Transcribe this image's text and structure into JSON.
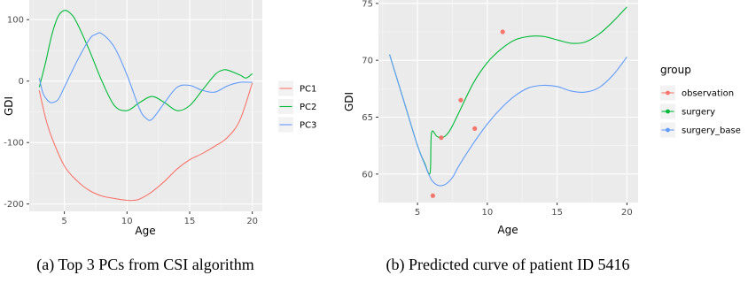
{
  "chart_data": [
    {
      "type": "line",
      "caption": "(a) Top 3 PCs from CSI algorithm",
      "xlabel": "Age",
      "ylabel": "GDI",
      "xlim": [
        2.2,
        20.8
      ],
      "ylim": [
        -212,
        132
      ],
      "xticks": [
        5,
        10,
        15,
        20
      ],
      "yticks": [
        -200,
        -100,
        0,
        100
      ],
      "tick_labels_x": [
        "5",
        "10",
        "15",
        "20"
      ],
      "tick_labels_y": [
        "-200",
        "-100",
        "0",
        "100"
      ],
      "grid": true,
      "legend": {
        "placement": "right",
        "title": ""
      },
      "series": [
        {
          "name": "PC1",
          "color": "#F8766D",
          "x": [
            3,
            3.5,
            4,
            5,
            6,
            7,
            8,
            9,
            10,
            10.5,
            11,
            12,
            13,
            14,
            15,
            16,
            17,
            18,
            19,
            20
          ],
          "y": [
            -15,
            -60,
            -92,
            -138,
            -162,
            -178,
            -187,
            -191,
            -194,
            -194,
            -192,
            -180,
            -163,
            -143,
            -128,
            -118,
            -106,
            -92,
            -64,
            -3
          ]
        },
        {
          "name": "PC2",
          "color": "#00BA38",
          "x": [
            3,
            3.5,
            4,
            4.5,
            5,
            5.5,
            6,
            7,
            8,
            9,
            10,
            11,
            12,
            13,
            14,
            15,
            16,
            17,
            17.5,
            18,
            19,
            19.5,
            20
          ],
          "y": [
            -10,
            30,
            75,
            105,
            115,
            110,
            95,
            50,
            0,
            -40,
            -48,
            -35,
            -25,
            -35,
            -48,
            -40,
            -15,
            10,
            17,
            18,
            10,
            5,
            12
          ]
        },
        {
          "name": "PC3",
          "color": "#619CFF",
          "x": [
            3,
            3.3,
            3.7,
            4,
            4.5,
            5,
            6,
            7,
            7.5,
            8,
            9,
            10,
            11,
            11.5,
            12,
            13,
            14,
            15,
            16,
            17,
            18,
            19,
            20
          ],
          "y": [
            5,
            -20,
            -32,
            -35,
            -30,
            -10,
            32,
            68,
            76,
            77,
            55,
            10,
            -45,
            -60,
            -62,
            -35,
            -10,
            -7,
            -15,
            -18,
            -8,
            -2,
            -2
          ]
        }
      ]
    },
    {
      "type": "line",
      "caption": "(b) Predicted curve of patient ID 5416",
      "xlabel": "Age",
      "ylabel": "GDI",
      "xlim": [
        2.2,
        20.8
      ],
      "ylim": [
        57.5,
        75.3
      ],
      "xticks": [
        5,
        10,
        15,
        20
      ],
      "yticks": [
        60,
        65,
        70,
        75
      ],
      "tick_labels_x": [
        "5",
        "10",
        "15",
        "20"
      ],
      "tick_labels_y": [
        "60",
        "65",
        "70",
        "75"
      ],
      "grid": true,
      "legend": {
        "placement": "right",
        "title": "group"
      },
      "series": [
        {
          "name": "surgery",
          "color": "#00BA38",
          "x": [
            3,
            4,
            5,
            5.5,
            5.9,
            6.0,
            6.4,
            6.8,
            7.3,
            8,
            9,
            10,
            11,
            12,
            13,
            14,
            15,
            16,
            17,
            18,
            19,
            20
          ],
          "y": [
            70.5,
            66.5,
            62.5,
            61.0,
            60.1,
            63.6,
            63.3,
            63.2,
            63.8,
            65.5,
            68.0,
            69.8,
            71.0,
            71.8,
            72.1,
            72.1,
            71.8,
            71.5,
            71.6,
            72.3,
            73.4,
            74.7
          ]
        },
        {
          "name": "surgery_base",
          "color": "#619CFF",
          "x": [
            3,
            4,
            5,
            5.5,
            6,
            6.5,
            7,
            7.5,
            8,
            9,
            10,
            11,
            12,
            13,
            14,
            15,
            16,
            17,
            18,
            19,
            20
          ],
          "y": [
            70.5,
            66.5,
            62.5,
            60.9,
            59.5,
            59.0,
            59.1,
            59.7,
            60.8,
            62.7,
            64.4,
            65.8,
            66.9,
            67.6,
            67.8,
            67.7,
            67.3,
            67.2,
            67.6,
            68.7,
            70.3
          ]
        },
        {
          "name": "observation",
          "color": "#F8766D",
          "points": [
            {
              "x": 6.1,
              "y": 58.1
            },
            {
              "x": 6.7,
              "y": 63.2
            },
            {
              "x": 8.1,
              "y": 66.5
            },
            {
              "x": 9.1,
              "y": 64.0
            },
            {
              "x": 11.1,
              "y": 72.5
            }
          ]
        }
      ]
    }
  ]
}
